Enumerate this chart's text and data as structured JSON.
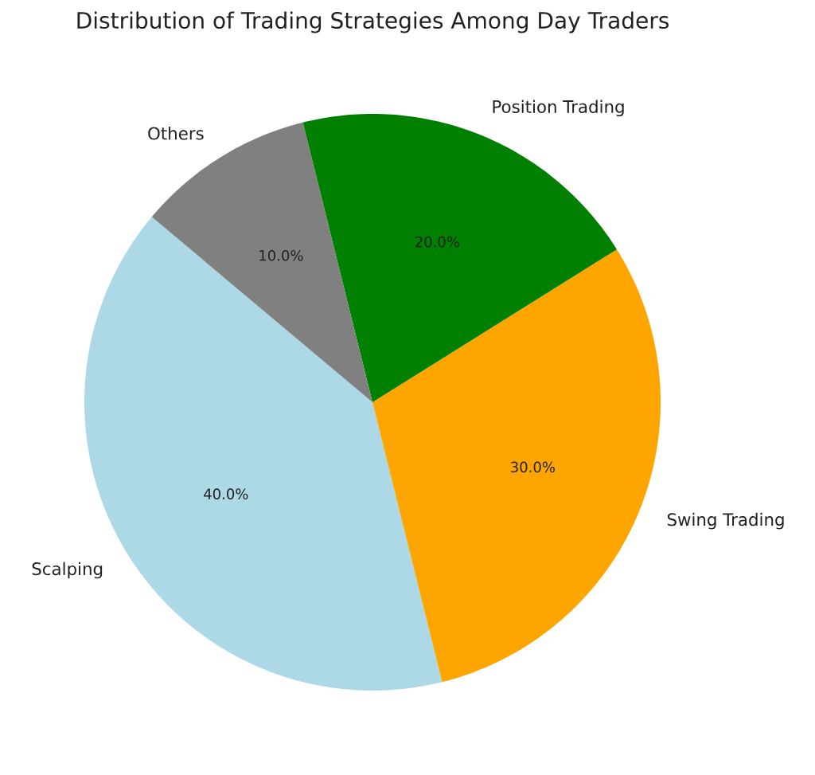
{
  "chart_data": {
    "type": "pie",
    "title": "Distribution of Trading Strategies Among Day Traders",
    "categories": [
      "Scalping",
      "Swing Trading",
      "Position Trading",
      "Others"
    ],
    "values": [
      40,
      30,
      20,
      10
    ],
    "colors": [
      "#add8e6",
      "#ffa500",
      "#008000",
      "#808080"
    ],
    "value_labels": [
      "40.0%",
      "30.0%",
      "20.0%",
      "10.0%"
    ]
  }
}
